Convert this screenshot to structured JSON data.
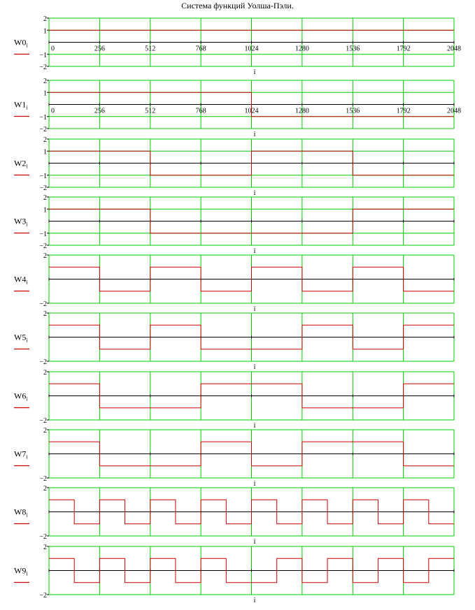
{
  "title": "Система функций Уолша-Пэли.",
  "colors": {
    "grid": "#00cc00",
    "signal": "#cc0000",
    "axis": "#000000",
    "background": "#ffffff"
  },
  "chart_data": [
    {
      "type": "line",
      "step": true,
      "ylabel": "W0",
      "ylabel_sub": "i",
      "xlabel": "i",
      "xlim": [
        0,
        2048
      ],
      "ylim": [
        -2,
        2
      ],
      "yticks": [
        "2",
        "1",
        "-1",
        "-2"
      ],
      "xticks": [
        "0",
        "256",
        "512",
        "768",
        "1024",
        "1280",
        "1536",
        "1792",
        "2048"
      ],
      "values": [
        1,
        1,
        1,
        1,
        1,
        1,
        1,
        1,
        1,
        1,
        1,
        1,
        1,
        1,
        1,
        1
      ]
    },
    {
      "type": "line",
      "step": true,
      "ylabel": "W1",
      "ylabel_sub": "i",
      "xlabel": "i",
      "xlim": [
        0,
        2048
      ],
      "ylim": [
        -2,
        2
      ],
      "yticks": [
        "2",
        "1",
        "-1",
        "-2"
      ],
      "xticks": [
        "0",
        "256",
        "512",
        "768",
        "1024",
        "1280",
        "1536",
        "1792",
        "2048"
      ],
      "values": [
        1,
        1,
        1,
        1,
        1,
        1,
        1,
        1,
        -1,
        -1,
        -1,
        -1,
        -1,
        -1,
        -1,
        -1
      ]
    },
    {
      "type": "line",
      "step": true,
      "ylabel": "W2",
      "ylabel_sub": "i",
      "xlabel": "i",
      "xlim": [
        0,
        2048
      ],
      "ylim": [
        -2,
        2
      ],
      "yticks": [
        "2",
        "1",
        "-1",
        "-2"
      ],
      "xticks": [],
      "values": [
        1,
        1,
        1,
        1,
        -1,
        -1,
        -1,
        -1,
        1,
        1,
        1,
        1,
        -1,
        -1,
        -1,
        -1
      ]
    },
    {
      "type": "line",
      "step": true,
      "ylabel": "W3",
      "ylabel_sub": "i",
      "xlabel": "i",
      "xlim": [
        0,
        2048
      ],
      "ylim": [
        -2,
        2
      ],
      "yticks": [
        "2",
        "1",
        "-1",
        "-2"
      ],
      "xticks": [],
      "values": [
        1,
        1,
        1,
        1,
        -1,
        -1,
        -1,
        -1,
        -1,
        -1,
        -1,
        -1,
        1,
        1,
        1,
        1
      ]
    },
    {
      "type": "line",
      "step": true,
      "ylabel": "W4",
      "ylabel_sub": "i",
      "xlabel": "i",
      "xlim": [
        0,
        2048
      ],
      "ylim": [
        -2,
        2
      ],
      "yticks": [
        "2",
        "-2"
      ],
      "xticks": [],
      "values": [
        1,
        1,
        -1,
        -1,
        1,
        1,
        -1,
        -1,
        1,
        1,
        -1,
        -1,
        1,
        1,
        -1,
        -1
      ]
    },
    {
      "type": "line",
      "step": true,
      "ylabel": "W5",
      "ylabel_sub": "i",
      "xlabel": "i",
      "xlim": [
        0,
        2048
      ],
      "ylim": [
        -2,
        2
      ],
      "yticks": [
        "2",
        "-2"
      ],
      "xticks": [],
      "values": [
        1,
        1,
        -1,
        -1,
        1,
        1,
        -1,
        -1,
        -1,
        -1,
        1,
        1,
        -1,
        -1,
        1,
        1
      ]
    },
    {
      "type": "line",
      "step": true,
      "ylabel": "W6",
      "ylabel_sub": "i",
      "xlabel": "i",
      "xlim": [
        0,
        2048
      ],
      "ylim": [
        -2,
        2
      ],
      "yticks": [
        "2",
        "-2"
      ],
      "xticks": [],
      "values": [
        1,
        1,
        -1,
        -1,
        -1,
        -1,
        1,
        1,
        1,
        1,
        -1,
        -1,
        -1,
        -1,
        1,
        1
      ]
    },
    {
      "type": "line",
      "step": true,
      "ylabel": "W7",
      "ylabel_sub": "i",
      "xlabel": "i",
      "xlim": [
        0,
        2048
      ],
      "ylim": [
        -2,
        2
      ],
      "yticks": [
        "2",
        "-2"
      ],
      "xticks": [],
      "values": [
        1,
        1,
        -1,
        -1,
        -1,
        -1,
        1,
        1,
        -1,
        -1,
        1,
        1,
        1,
        1,
        -1,
        -1
      ]
    },
    {
      "type": "line",
      "step": true,
      "ylabel": "W8",
      "ylabel_sub": "i",
      "xlabel": "i",
      "xlim": [
        0,
        2048
      ],
      "ylim": [
        -2,
        2
      ],
      "yticks": [
        "2",
        "-2"
      ],
      "xticks": [],
      "values": [
        1,
        -1,
        1,
        -1,
        1,
        -1,
        1,
        -1,
        1,
        -1,
        1,
        -1,
        1,
        -1,
        1,
        -1
      ]
    },
    {
      "type": "line",
      "step": true,
      "ylabel": "W9",
      "ylabel_sub": "i",
      "xlabel": "i",
      "xlim": [
        0,
        2048
      ],
      "ylim": [
        -2,
        2
      ],
      "yticks": [
        "2",
        "-2"
      ],
      "xticks": [],
      "values": [
        1,
        -1,
        1,
        -1,
        1,
        -1,
        1,
        -1,
        -1,
        1,
        -1,
        1,
        -1,
        1,
        -1,
        1
      ]
    }
  ]
}
